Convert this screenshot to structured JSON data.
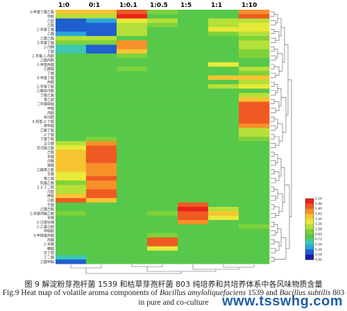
{
  "chart_data": {
    "type": "heatmap",
    "columns": [
      "1:0",
      "0:1",
      "1:0.1",
      "1:0.5",
      "1:5",
      "1:1",
      "1:10"
    ],
    "row_labels_visible": [
      "2-甲基丁酸乙酯",
      "甲醇",
      "乙醇",
      "乙酸",
      "2-甲基丁醛",
      "乙醛",
      "乙酸乙酯",
      "3-甲基丁酸",
      "2-戊酮",
      "丁醇",
      "2-甲基-1-丙醇",
      "乙酸丙酯",
      "2-甲基丙酸",
      "乙醛酸",
      "丁酸",
      "3-甲基丁醛",
      "丙酸",
      "2-甲基丁醇",
      "乙酸异戊酯",
      "丁酸乙酯",
      "苯乙醇",
      "二甲基硫醚",
      "甲酸",
      "丙醇",
      "异戊醇",
      "3-羟基-2-丁酮",
      "苯甲醛",
      "乙酸丁酯",
      "2-丁酮",
      "丁酸丁酯",
      "正己醛",
      "异戊酸乙酯",
      "己酸",
      "辛酸",
      "戊酸",
      "癸酸",
      "乙酸苯乙酯",
      "壬醛",
      "苯乙醛",
      "乳酸乙酯",
      "2,3-丁二醇",
      "戊醇",
      "庚醛",
      "己醇",
      "壬酸",
      "乙酸己酯",
      "2-甲基丙酸乙酯",
      "辛醛",
      "2-戊基呋喃",
      "2-乙基己醇",
      "甲硫醇",
      "3-甲硫基丙醛",
      "丙酮",
      "2-辛酮",
      "糠醛",
      "异丁醇",
      "丁二酮",
      "乙酸甲酯"
    ],
    "rows": 58,
    "values": [
      [
        0.7,
        0.7,
        0.95,
        0.45,
        0.35,
        0.4,
        0.85
      ],
      [
        0.5,
        0.5,
        1.0,
        0.4,
        0.35,
        0.4,
        0.9
      ],
      [
        0.1,
        0.15,
        0.6,
        0.5,
        0.4,
        0.5,
        0.55
      ],
      [
        0.05,
        0.05,
        0.55,
        0.45,
        0.4,
        0.55,
        0.6
      ],
      [
        0.1,
        0.05,
        0.55,
        0.4,
        0.4,
        0.65,
        0.65
      ],
      [
        0.15,
        0.1,
        0.55,
        0.4,
        0.4,
        0.45,
        0.55
      ],
      [
        0.55,
        0.55,
        0.4,
        0.4,
        0.4,
        0.4,
        0.45
      ],
      [
        0.45,
        0.45,
        0.85,
        0.4,
        0.4,
        0.4,
        0.55
      ],
      [
        0.3,
        0.1,
        0.8,
        0.4,
        0.4,
        0.4,
        0.5
      ],
      [
        0.25,
        0.05,
        0.7,
        0.4,
        0.4,
        0.4,
        0.45
      ],
      [
        0.4,
        0.4,
        0.45,
        0.4,
        0.4,
        0.4,
        0.45
      ],
      [
        0.4,
        0.4,
        0.4,
        0.4,
        0.4,
        0.4,
        0.4
      ],
      [
        0.4,
        0.4,
        0.4,
        0.4,
        0.4,
        0.6,
        0.4
      ],
      [
        0.4,
        0.4,
        0.45,
        0.4,
        0.4,
        0.4,
        0.55
      ],
      [
        0.35,
        0.35,
        0.4,
        0.4,
        0.4,
        0.4,
        0.45
      ],
      [
        0.4,
        0.4,
        0.4,
        0.4,
        0.4,
        0.7,
        0.75
      ],
      [
        0.4,
        0.4,
        0.4,
        0.4,
        0.4,
        0.4,
        0.55
      ],
      [
        0.4,
        0.4,
        0.4,
        0.4,
        0.4,
        0.55,
        0.6
      ],
      [
        0.4,
        0.4,
        0.4,
        0.4,
        0.4,
        0.4,
        0.4
      ],
      [
        0.4,
        0.4,
        0.4,
        0.4,
        0.4,
        0.4,
        0.55
      ],
      [
        0.4,
        0.4,
        0.4,
        0.4,
        0.4,
        0.4,
        0.75
      ],
      [
        0.4,
        0.4,
        0.4,
        0.4,
        0.4,
        0.4,
        0.95
      ],
      [
        0.4,
        0.4,
        0.4,
        0.4,
        0.4,
        0.4,
        0.95
      ],
      [
        0.4,
        0.4,
        0.4,
        0.4,
        0.4,
        0.4,
        0.95
      ],
      [
        0.4,
        0.4,
        0.4,
        0.4,
        0.4,
        0.4,
        0.95
      ],
      [
        0.4,
        0.4,
        0.4,
        0.4,
        0.4,
        0.4,
        0.9
      ],
      [
        0.4,
        0.4,
        0.4,
        0.4,
        0.4,
        0.4,
        0.8
      ],
      [
        0.4,
        0.4,
        0.4,
        0.4,
        0.4,
        0.4,
        0.55
      ],
      [
        0.4,
        0.4,
        0.4,
        0.4,
        0.4,
        0.4,
        0.55
      ],
      [
        0.4,
        0.45,
        0.4,
        0.4,
        0.4,
        0.4,
        0.45
      ],
      [
        0.5,
        0.8,
        0.4,
        0.4,
        0.4,
        0.4,
        0.4
      ],
      [
        0.6,
        0.9,
        0.4,
        0.4,
        0.4,
        0.4,
        0.4
      ],
      [
        0.7,
        0.9,
        0.4,
        0.4,
        0.4,
        0.4,
        0.4
      ],
      [
        0.72,
        0.9,
        0.4,
        0.4,
        0.4,
        0.4,
        0.4
      ],
      [
        0.75,
        0.88,
        0.4,
        0.4,
        0.4,
        0.4,
        0.4
      ],
      [
        0.75,
        0.85,
        0.4,
        0.4,
        0.4,
        0.4,
        0.4
      ],
      [
        0.7,
        0.85,
        0.4,
        0.4,
        0.4,
        0.4,
        0.4
      ],
      [
        0.65,
        0.85,
        0.4,
        0.4,
        0.4,
        0.4,
        0.4
      ],
      [
        0.6,
        0.9,
        0.4,
        0.4,
        0.4,
        0.4,
        0.4
      ],
      [
        0.45,
        0.85,
        0.4,
        0.4,
        0.4,
        0.4,
        0.4
      ],
      [
        0.5,
        0.8,
        0.4,
        0.4,
        0.4,
        0.4,
        0.4
      ],
      [
        0.55,
        0.95,
        0.4,
        0.4,
        0.4,
        0.4,
        0.4
      ],
      [
        0.7,
        0.95,
        0.4,
        0.4,
        0.4,
        0.4,
        0.4
      ],
      [
        0.9,
        0.7,
        0.4,
        0.4,
        0.4,
        0.4,
        0.4
      ],
      [
        0.4,
        0.4,
        0.4,
        0.4,
        0.95,
        0.4,
        0.4
      ],
      [
        0.4,
        0.4,
        0.4,
        0.4,
        1.0,
        0.55,
        0.4
      ],
      [
        0.45,
        0.4,
        0.4,
        0.45,
        0.95,
        0.7,
        0.4
      ],
      [
        0.4,
        0.4,
        0.4,
        0.4,
        0.9,
        0.6,
        0.4
      ],
      [
        0.4,
        0.4,
        0.4,
        0.4,
        0.85,
        0.4,
        0.4
      ],
      [
        0.4,
        0.4,
        0.4,
        0.4,
        0.4,
        0.4,
        0.45
      ],
      [
        0.4,
        0.4,
        0.4,
        0.4,
        0.4,
        0.4,
        0.4
      ],
      [
        0.4,
        0.4,
        0.4,
        0.45,
        0.4,
        0.4,
        0.4
      ],
      [
        0.4,
        0.4,
        0.4,
        0.95,
        0.4,
        0.4,
        0.4
      ],
      [
        0.4,
        0.4,
        0.4,
        0.95,
        0.4,
        0.4,
        0.4
      ],
      [
        0.4,
        0.4,
        0.4,
        0.6,
        0.4,
        0.4,
        0.4
      ],
      [
        0.4,
        0.4,
        0.4,
        0.4,
        0.4,
        0.4,
        0.4
      ],
      [
        0.3,
        0.4,
        0.4,
        0.4,
        0.4,
        0.4,
        0.4
      ],
      [
        0.1,
        0.4,
        0.4,
        0.4,
        0.4,
        0.4,
        0.4
      ]
    ],
    "color_scale": [
      "#1a1aa8",
      "#1f5fd0",
      "#2aa6d8",
      "#3cc8b0",
      "#57c84a",
      "#7fd23a",
      "#b5e03a",
      "#e9e93a",
      "#f7c431",
      "#f59128",
      "#ef5a22",
      "#e8221d"
    ],
    "legend_ticks": [
      "2.16",
      "1.98",
      "1.80",
      "1.62",
      "1.44",
      "1.26",
      "1.08",
      "0.90",
      "0.72",
      "0.54",
      "0.36",
      "0.18",
      "0.00"
    ],
    "legend_position": "right",
    "dendrograms": "top-and-right"
  },
  "caption": {
    "cn": "图 9  解淀粉芽孢杆菌 1539 和枯草芽孢杆菌 803 纯培养和共培养体系中各风味物质含量",
    "en_line1_a": "Fig.9  Heat map of volatile aroma components of ",
    "en_line1_b": "Bacillus amyloliquefaciens",
    "en_line1_c": " 1539 and ",
    "en_line1_d": "Bacillus subtilis",
    "en_line1_e": " 803",
    "en_line2": "in pure and co-culture"
  },
  "watermark": "www.tsswhg.com"
}
